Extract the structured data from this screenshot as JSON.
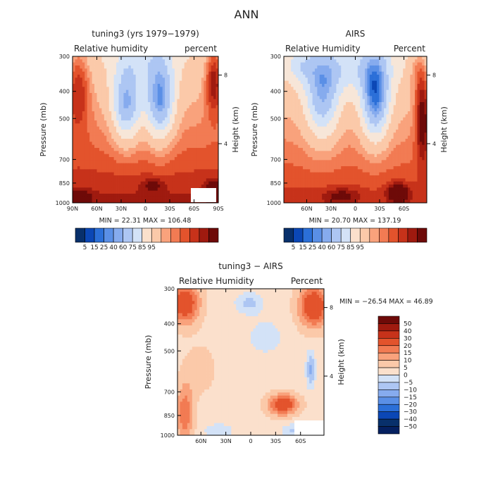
{
  "figure": {
    "title": "ANN"
  },
  "chart_data": [
    {
      "type": "heatmap",
      "title": "tuning3 (yrs 1979−1979)",
      "left_label": "Relative humidity",
      "right_label": "percent",
      "ylabel": "Pressure (mb)",
      "y2label": "Height (km)",
      "y_ticks": [
        "300",
        "400",
        "500",
        "700",
        "850",
        "1000"
      ],
      "y2_ticks": [
        "8",
        "4"
      ],
      "x_ticks": [
        "90N",
        "60N",
        "30N",
        "0",
        "30S",
        "60S",
        "90S"
      ],
      "stats": "MIN =  22.31   MAX = 106.48",
      "colorbar": [
        "5",
        "15",
        "25",
        "40",
        "60",
        "75",
        "85",
        "95"
      ]
    },
    {
      "type": "heatmap",
      "title": "AIRS",
      "left_label": "Relative Humidity",
      "right_label": "Percent",
      "ylabel": "Pressure (mb)",
      "y2label": "Height (km)",
      "y_ticks": [
        "300",
        "400",
        "500",
        "700",
        "850",
        "1000"
      ],
      "y2_ticks": [
        "8",
        "4"
      ],
      "x_ticks": [
        "60N",
        "30N",
        "0",
        "30S",
        "60S"
      ],
      "stats": "MIN =  20.70   MAX = 137.19",
      "colorbar": [
        "5",
        "15",
        "25",
        "40",
        "60",
        "75",
        "85",
        "95"
      ]
    },
    {
      "type": "heatmap",
      "title": "tuning3 − AIRS",
      "left_label": "Relative Humidity",
      "right_label": "Percent",
      "ylabel": "Pressure (mb)",
      "y2label": "Height (km)",
      "y_ticks": [
        "300",
        "400",
        "500",
        "700",
        "850",
        "1000"
      ],
      "y2_ticks": [
        "8",
        "4"
      ],
      "x_ticks": [
        "60N",
        "30N",
        "0",
        "30S",
        "60S"
      ],
      "stats": "MIN = −26.54   MAX =  46.89",
      "colorbar": [
        "50",
        "40",
        "30",
        "20",
        "15",
        "10",
        "5",
        "0",
        "−5",
        "−10",
        "−15",
        "−20",
        "−30",
        "−40",
        "−50"
      ]
    }
  ]
}
